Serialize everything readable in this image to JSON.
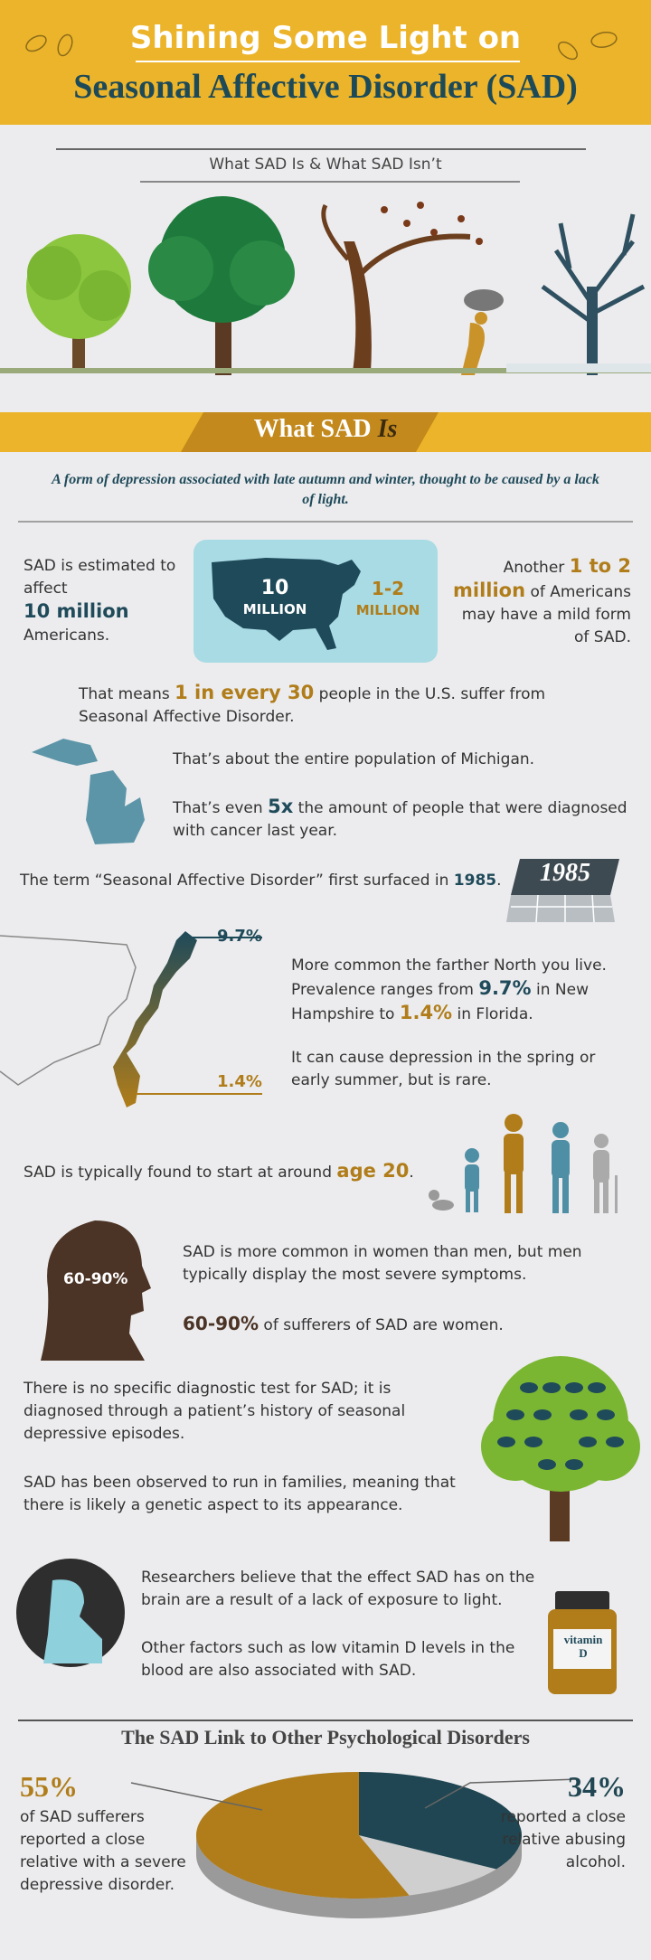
{
  "header": {
    "title_line1": "Shining Some Light on",
    "title_line2": "Seasonal Affective Disorder (SAD)"
  },
  "intro": {
    "subtitle": "What SAD Is & What SAD Isn’t"
  },
  "what_sad_is": {
    "heading": "What SAD",
    "heading_emphasis": "Is",
    "definition": "A form of depression associated with late autumn and winter, thought to be caused by a lack of light."
  },
  "stats": {
    "estimate": {
      "before": "SAD is estimated to affect",
      "highlight": "10 million",
      "after": "Americans."
    },
    "map": {
      "main_value": "10",
      "main_unit": "MILLION",
      "mild_value": "1-2",
      "mild_unit": "MILLION"
    },
    "mild": {
      "before": "Another",
      "highlight": "1 to 2 million",
      "after": "of Americans may have a mild form of SAD."
    }
  },
  "ratio": {
    "before": "That means",
    "highlight": "1 in every 30",
    "after": "people in the U.S. suffer from Seasonal Affective Disorder."
  },
  "michigan": {
    "text": "That’s about the entire population of Michigan."
  },
  "cancer": {
    "before": "That’s even",
    "highlight": "5x",
    "after": "the amount of people that were diagnosed with cancer last year."
  },
  "history": {
    "before": "The term “Seasonal Affective Disorder” first surfaced in",
    "year": "1985",
    "after": "."
  },
  "geography": {
    "north_label": "9.7%",
    "south_label": "1.4%",
    "text_before": "More common the farther North you live. Prevalence ranges from",
    "north_highlight": "9.7%",
    "text_middle": "in New Hampshire to",
    "south_highlight": "1.4%",
    "text_after": "in Florida.",
    "spring": "It can cause depression in the spring or early summer, but is rare."
  },
  "age": {
    "before": "SAD is typically found to start at around",
    "highlight": "age 20",
    "after": "."
  },
  "gender": {
    "silhouette_label": "60-90%",
    "severity": "SAD is more common in women than men, but men typically display the most severe symptoms.",
    "highlight": "60-90%",
    "after": "of sufferers of SAD are women."
  },
  "diagnosis": {
    "test": "There is no specific diagnostic test for SAD; it is diagnosed through a patient’s history of seasonal depressive episodes.",
    "genetics": "SAD has been observed to run in families, meaning that there is likely a genetic aspect to its appearance."
  },
  "causes": {
    "light": "Researchers believe that the effect SAD has on the brain are a result of a lack of exposure to light.",
    "vitamin": "Other factors such as low vitamin D levels in the blood are also associated with SAD.",
    "bottle_label_line1": "vitamin",
    "bottle_label_line2": "D"
  },
  "link": {
    "title": "The SAD Link to Other Psychological Disorders",
    "slices": [
      {
        "value": 55,
        "label": "55%",
        "color": "#b07d1a",
        "text": "of SAD sufferers reported a close relative with a severe depressive disorder."
      },
      {
        "value": 34,
        "label": "34%",
        "color": "#1f4652",
        "text": "reported a close relative abusing alcohol."
      }
    ]
  }
}
